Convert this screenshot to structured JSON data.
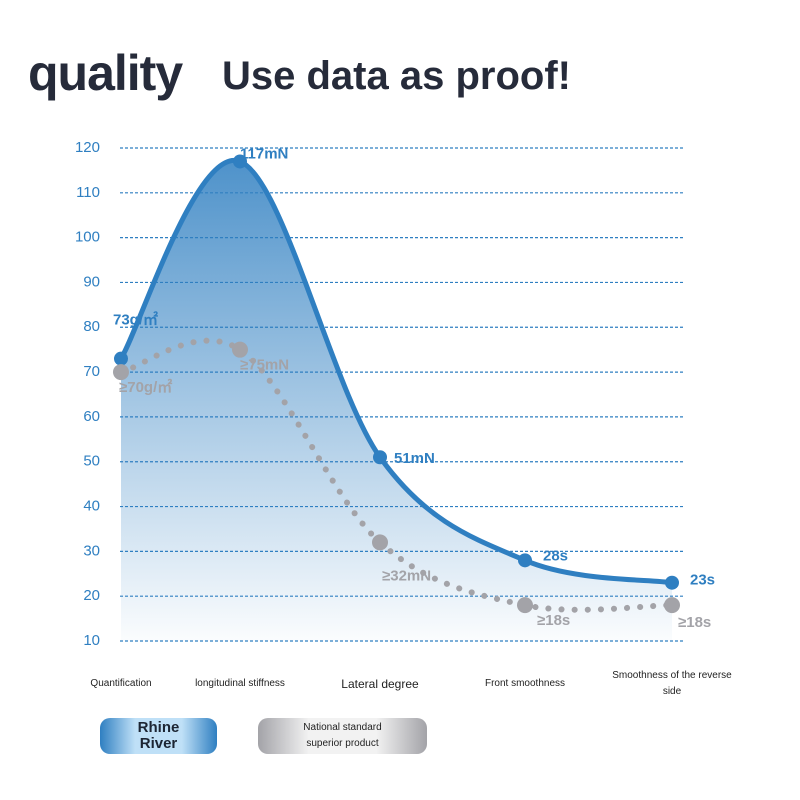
{
  "chart_data": {
    "type": "line",
    "title": "quality",
    "subtitle": "Use data as proof!",
    "categories": [
      "Quantification",
      "longitudinal stiffness",
      "Lateral degree",
      "Front smoothness",
      "Smoothness of the reverse side"
    ],
    "series": [
      {
        "name": "Rhine River",
        "color": "#2f7fc1",
        "values": [
          73,
          117,
          51,
          28,
          23
        ],
        "value_labels": [
          "73g/㎡",
          "117mN",
          "51mN",
          "28s",
          "23s"
        ]
      },
      {
        "name": "National standard superior product",
        "color": "#a3a3a8",
        "values": [
          70,
          75,
          32,
          18,
          18
        ],
        "value_labels": [
          "≥70g/㎡",
          "≥75mN",
          "≥32mN",
          "≥18s",
          "≥18s"
        ]
      }
    ],
    "ylim": [
      10,
      120
    ],
    "yticks": [
      10,
      20,
      30,
      40,
      50,
      60,
      70,
      80,
      90,
      100,
      110,
      120
    ],
    "grid": true
  }
}
